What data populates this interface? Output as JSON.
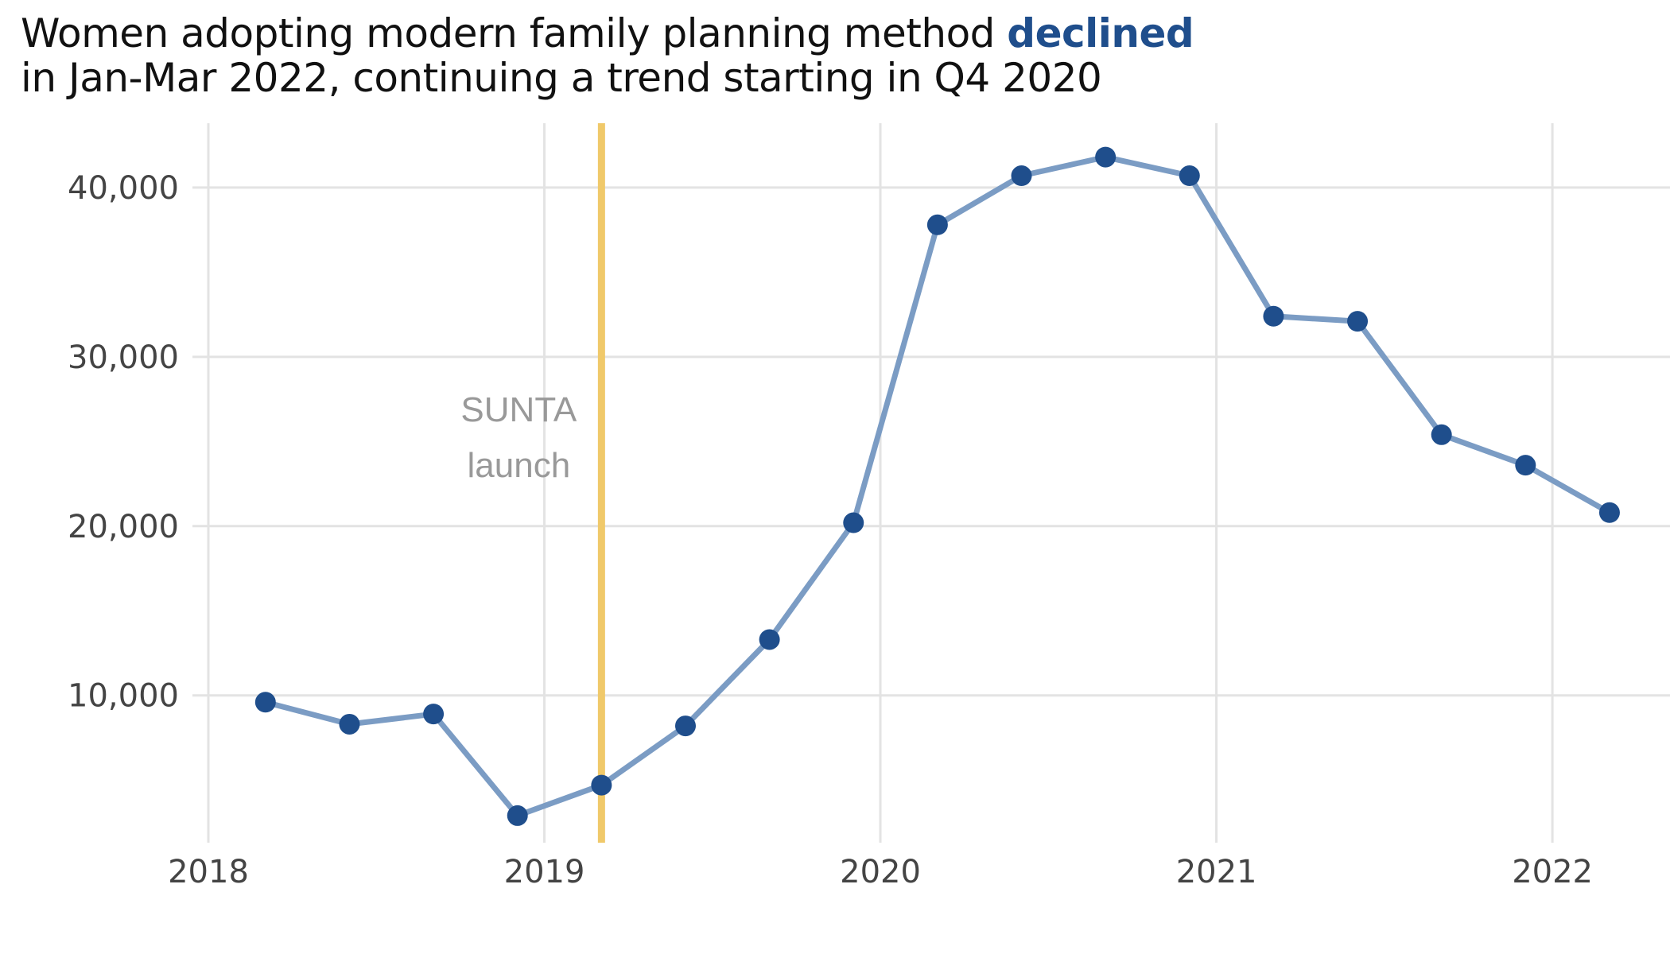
{
  "chart_data": {
    "type": "line",
    "title": {
      "part1": "Women adopting modern family planning method ",
      "highlight": "declined",
      "line2": "in Jan-Mar 2022, continuing a trend starting in Q4 2020"
    },
    "xlabel": "",
    "ylabel": "",
    "x_ticks": [
      2018,
      2019,
      2020,
      2021,
      2022
    ],
    "y_ticks": [
      10000,
      20000,
      30000,
      40000
    ],
    "y_tick_labels": [
      "10,000",
      "20,000",
      "30,000",
      "40,000"
    ],
    "xlim": [
      2018.0,
      2022.35
    ],
    "ylim": [
      1300,
      43800
    ],
    "grid": true,
    "series": [
      {
        "color": "#7b9cc4",
        "marker_color": "#1f4e8c",
        "x": [
          2018.17,
          2018.42,
          2018.67,
          2018.92,
          2019.17,
          2019.42,
          2019.67,
          2019.92,
          2020.17,
          2020.42,
          2020.67,
          2020.92,
          2021.17,
          2021.42,
          2021.67,
          2021.92,
          2022.17
        ],
        "values": [
          9600,
          8300,
          8900,
          2900,
          4700,
          8200,
          13300,
          20200,
          37800,
          40700,
          41800,
          40700,
          32400,
          32100,
          25400,
          23600,
          20800
        ]
      }
    ],
    "annotation": {
      "x": 2019.17,
      "line_color": "#f0c96a",
      "label_line1": "SUNTA",
      "label_line2": "launch"
    }
  }
}
